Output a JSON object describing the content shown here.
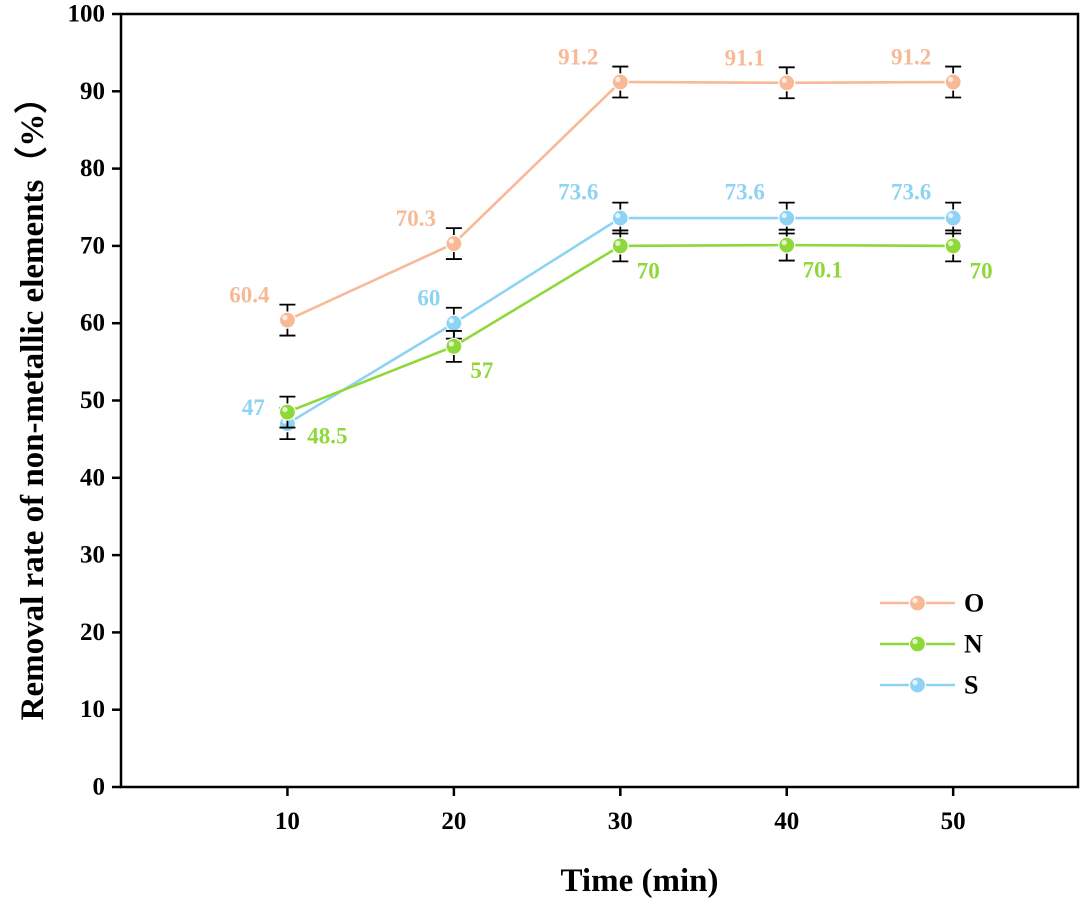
{
  "chart_data": {
    "type": "line",
    "title": "",
    "xlabel": "Time (min)",
    "ylabel": "Removal rate of non-metallic elements（%）",
    "x": [
      10,
      20,
      30,
      40,
      50
    ],
    "xticks": [
      "10",
      "20",
      "30",
      "40",
      "50"
    ],
    "xlim": [
      0,
      57.5
    ],
    "ylim": [
      0,
      100
    ],
    "yticks": [
      "0",
      "10",
      "20",
      "30",
      "40",
      "50",
      "60",
      "70",
      "80",
      "90",
      "100"
    ],
    "grid": false,
    "legend_position": "bottom-right",
    "series": [
      {
        "name": "O",
        "color": "#F7B996",
        "values": [
          60.4,
          70.3,
          91.2,
          91.1,
          91.2
        ],
        "errors": [
          2.0,
          2.0,
          2.0,
          2.0,
          2.0
        ],
        "labels": [
          "60.4",
          "70.3",
          "91.2",
          "91.1",
          "91.2"
        ]
      },
      {
        "name": "N",
        "color": "#8FD83A",
        "values": [
          48.5,
          57,
          70,
          70.1,
          70
        ],
        "errors": [
          2.0,
          2.0,
          2.0,
          2.0,
          2.0
        ],
        "labels": [
          "48.5",
          "57",
          "70",
          "70.1",
          "70"
        ]
      },
      {
        "name": "S",
        "color": "#8ED3F3",
        "values": [
          47,
          60,
          73.6,
          73.6,
          73.6
        ],
        "errors": [
          2.0,
          2.0,
          2.0,
          2.0,
          2.0
        ],
        "labels": [
          "47",
          "60",
          "73.6",
          "73.6",
          "73.6"
        ]
      }
    ]
  }
}
